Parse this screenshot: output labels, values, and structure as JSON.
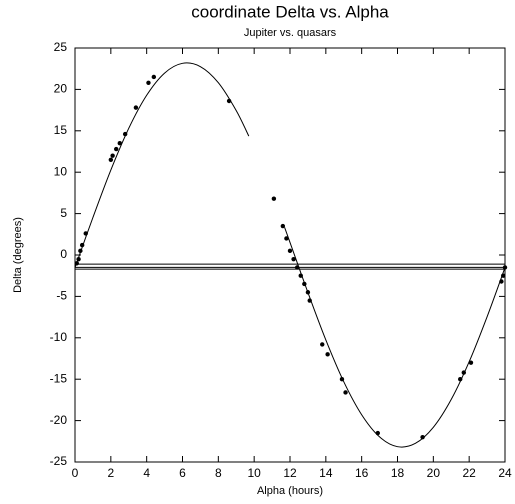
{
  "chart_data": {
    "type": "line",
    "title": "coordinate Delta vs. Alpha",
    "subtitle": "Jupiter vs. quasars",
    "xlabel": "Alpha (hours)",
    "ylabel": "Delta (degrees)",
    "xlim": [
      0,
      24
    ],
    "xticks": [
      0,
      2,
      4,
      6,
      8,
      10,
      12,
      14,
      16,
      18,
      20,
      22,
      24
    ],
    "ylim": [
      -25,
      25
    ],
    "yticks": [
      -25,
      -20,
      -15,
      -10,
      -5,
      0,
      5,
      10,
      15,
      20,
      25
    ],
    "hlines": [
      -1.1,
      -1.5,
      -1.7
    ],
    "series": [
      {
        "type": "line",
        "color": "#000000",
        "x": [
          0,
          1,
          2,
          3,
          4,
          5,
          6,
          7,
          8,
          9,
          9.7,
          null,
          11.7,
          12,
          13,
          14,
          15,
          16,
          17,
          18,
          19,
          20,
          21,
          22,
          23,
          24
        ],
        "values": [
          -1.52,
          4.53,
          10.26,
          15.3,
          19.29,
          21.97,
          23.15,
          22.75,
          20.81,
          17.44,
          14.36,
          null,
          3.33,
          1.52,
          -4.53,
          -10.26,
          -15.3,
          -19.29,
          -21.97,
          -23.15,
          -22.75,
          -20.81,
          -17.44,
          -12.89,
          -7.46,
          -1.52
        ]
      },
      {
        "type": "scatter",
        "color": "#000000",
        "x": [
          0.1,
          0.2,
          0.3,
          0.4,
          0.6,
          2,
          2.1,
          2.3,
          2.5,
          2.8,
          3.4,
          4.1,
          4.4,
          8.6,
          11.1,
          11.6,
          11.8,
          12,
          12.2,
          12.4,
          12.6,
          12.8,
          13,
          13.1,
          13.8,
          14.1,
          14.9,
          15.1,
          16.9,
          19.4,
          21.5,
          21.7,
          22.1,
          23.8,
          23.9,
          24
        ],
        "values": [
          -1,
          -0.5,
          0.5,
          1.2,
          2.6,
          11.5,
          12,
          12.8,
          13.5,
          14.6,
          17.8,
          20.8,
          21.5,
          18.6,
          6.8,
          3.5,
          2,
          0.5,
          -0.5,
          -1.5,
          -2.5,
          -3.5,
          -4.5,
          -5.5,
          -10.8,
          -12,
          -15,
          -16.6,
          -21.5,
          -22,
          -15,
          -14.2,
          -13,
          -3.2,
          -2.5,
          -1.5
        ]
      }
    ]
  }
}
